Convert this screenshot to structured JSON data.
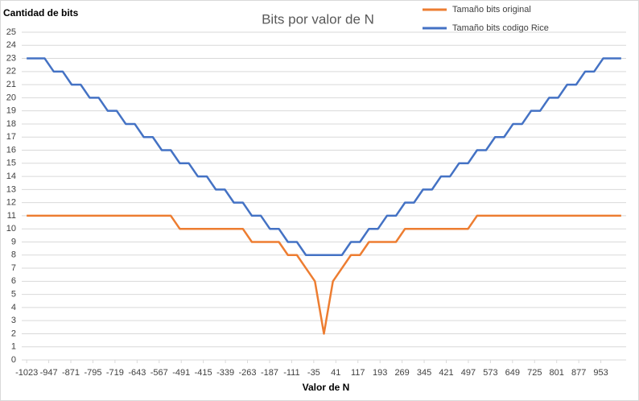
{
  "chart_data": {
    "type": "line",
    "title": "Bits por valor de N",
    "y_label": "Cantidad de bits",
    "x_label": "Valor de N",
    "x": [
      -1023,
      -992,
      -961,
      -930,
      -899,
      -868,
      -837,
      -806,
      -775,
      -744,
      -713,
      -682,
      -651,
      -620,
      -589,
      -558,
      -527,
      -496,
      -465,
      -434,
      -403,
      -372,
      -341,
      -310,
      -279,
      -248,
      -217,
      -186,
      -155,
      -124,
      -93,
      -62,
      -31,
      0,
      31,
      62,
      93,
      124,
      155,
      186,
      217,
      248,
      279,
      310,
      341,
      372,
      403,
      434,
      465,
      496,
      527,
      558,
      589,
      620,
      651,
      682,
      713,
      744,
      775,
      806,
      837,
      868,
      899,
      930,
      961,
      992,
      1023
    ],
    "series": [
      {
        "name": "Tamaño bits original",
        "color": "#ed7d31",
        "values": [
          11,
          11,
          11,
          11,
          11,
          11,
          11,
          11,
          11,
          11,
          11,
          11,
          11,
          11,
          11,
          11,
          11,
          10,
          10,
          10,
          10,
          10,
          10,
          10,
          10,
          9,
          9,
          9,
          9,
          8,
          8,
          7,
          6,
          2,
          6,
          7,
          8,
          8,
          9,
          9,
          9,
          9,
          10,
          10,
          10,
          10,
          10,
          10,
          10,
          10,
          11,
          11,
          11,
          11,
          11,
          11,
          11,
          11,
          11,
          11,
          11,
          11,
          11,
          11,
          11,
          11,
          11
        ]
      },
      {
        "name": "Tamaño bits codigo Rice",
        "color": "#4472c4",
        "values": [
          23,
          23,
          23,
          22,
          22,
          21,
          21,
          20,
          20,
          19,
          19,
          18,
          18,
          17,
          17,
          16,
          16,
          15,
          15,
          14,
          14,
          13,
          13,
          12,
          12,
          11,
          11,
          10,
          10,
          9,
          9,
          8,
          8,
          8,
          8,
          8,
          9,
          9,
          10,
          10,
          11,
          11,
          12,
          12,
          13,
          13,
          14,
          14,
          15,
          15,
          16,
          16,
          17,
          17,
          18,
          18,
          19,
          19,
          20,
          20,
          21,
          21,
          22,
          22,
          23,
          23,
          23
        ]
      }
    ],
    "xlim": [
      -1040,
      1040
    ],
    "xticks": [
      -1023,
      -947,
      -871,
      -795,
      -719,
      -643,
      -567,
      -491,
      -415,
      -339,
      -263,
      -187,
      -111,
      -35,
      41,
      117,
      193,
      269,
      345,
      421,
      497,
      573,
      649,
      725,
      801,
      877,
      953
    ],
    "ylim": [
      0,
      25
    ],
    "yticks": [
      0,
      1,
      2,
      3,
      4,
      5,
      6,
      7,
      8,
      9,
      10,
      11,
      12,
      13,
      14,
      15,
      16,
      17,
      18,
      19,
      20,
      21,
      22,
      23,
      24,
      25
    ],
    "grid": true
  }
}
